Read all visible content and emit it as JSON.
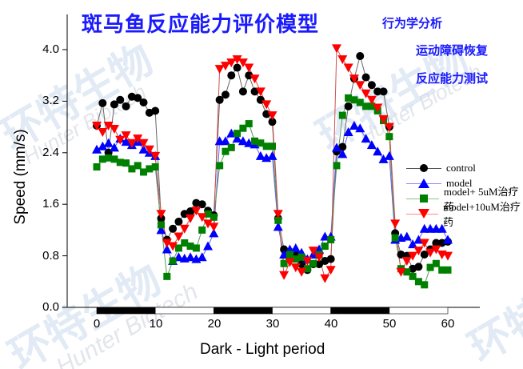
{
  "header": {
    "title": "斑马鱼反应能力评价模型",
    "tags": [
      "行为学分析",
      "运动障碍恢复",
      "反应能力测试"
    ]
  },
  "watermark": {
    "cn": "环特生物",
    "en": "Hunter Biotech"
  },
  "axes": {
    "ylabel": "Speed (mm/s)",
    "xlabel": "Dark - Light period",
    "yticks": [
      "0.0",
      "0.8",
      "1.6",
      "2.4",
      "3.2",
      "4.0"
    ],
    "xticks": [
      "0",
      "10",
      "20",
      "30",
      "40",
      "50",
      "60"
    ]
  },
  "legend": {
    "items": [
      {
        "label": "control",
        "color": "#000000",
        "marker": "circle"
      },
      {
        "label": "model",
        "color": "#0000ff",
        "marker": "triangle-up"
      },
      {
        "label": "model+ 5uM治疗药",
        "color": "#008000",
        "marker": "square"
      },
      {
        "label": "model+10uM治疗药",
        "color": "#ff0000",
        "marker": "triangle-down"
      }
    ]
  },
  "chart_data": {
    "type": "line",
    "title": "斑马鱼反应能力评价模型",
    "xlabel": "Dark - Light period",
    "ylabel": "Speed (mm/s)",
    "xlim": [
      0,
      60
    ],
    "ylim": [
      0,
      4.0
    ],
    "yticks": [
      0.0,
      0.8,
      1.6,
      2.4,
      3.2,
      4.0
    ],
    "xticks": [
      0,
      10,
      20,
      30,
      40,
      50,
      60
    ],
    "grid": false,
    "legend_position": "right",
    "period_bar": [
      {
        "from": 0,
        "to": 10,
        "phase": "dark"
      },
      {
        "from": 10,
        "to": 20,
        "phase": "light"
      },
      {
        "from": 20,
        "to": 30,
        "phase": "dark"
      },
      {
        "from": 30,
        "to": 40,
        "phase": "light"
      },
      {
        "from": 40,
        "to": 50,
        "phase": "dark"
      },
      {
        "from": 50,
        "to": 60,
        "phase": "light"
      }
    ],
    "x": [
      0,
      1,
      2,
      3,
      4,
      5,
      6,
      7,
      8,
      9,
      10,
      11,
      12,
      13,
      14,
      15,
      16,
      17,
      18,
      19,
      20,
      21,
      22,
      23,
      24,
      25,
      26,
      27,
      28,
      29,
      30,
      31,
      32,
      33,
      34,
      35,
      36,
      37,
      38,
      39,
      40,
      41,
      42,
      43,
      44,
      45,
      46,
      47,
      48,
      49,
      50,
      51,
      52,
      53,
      54,
      55,
      56,
      57,
      58,
      59,
      60
    ],
    "series": [
      {
        "name": "control",
        "color": "#000000",
        "marker": "circle",
        "values": [
          2.82,
          3.17,
          2.4,
          3.15,
          3.22,
          3.12,
          3.27,
          3.25,
          3.18,
          3.02,
          3.05,
          1.38,
          1.05,
          1.22,
          1.33,
          1.45,
          1.49,
          1.62,
          1.6,
          1.5,
          1.43,
          3.22,
          3.3,
          3.6,
          3.72,
          3.35,
          3.6,
          3.35,
          3.22,
          3.0,
          2.88,
          1.38,
          0.9,
          0.8,
          0.82,
          0.67,
          0.58,
          0.67,
          0.67,
          0.72,
          0.75,
          2.42,
          2.49,
          3.12,
          3.55,
          3.9,
          3.57,
          3.45,
          3.35,
          3.35,
          2.8,
          1.15,
          0.82,
          0.8,
          0.6,
          0.63,
          0.82,
          0.9,
          1.0,
          1.0,
          1.02
        ]
      },
      {
        "name": "model",
        "color": "#0000ff",
        "marker": "triangle-up",
        "values": [
          2.45,
          2.5,
          2.55,
          2.48,
          2.62,
          2.57,
          2.52,
          2.57,
          2.45,
          2.4,
          2.35,
          1.2,
          0.9,
          0.72,
          0.78,
          0.76,
          0.78,
          0.75,
          0.78,
          0.95,
          1.15,
          2.58,
          2.58,
          2.7,
          2.62,
          2.58,
          2.55,
          2.53,
          2.35,
          2.32,
          2.35,
          1.25,
          0.82,
          0.9,
          0.92,
          0.85,
          0.75,
          0.82,
          0.9,
          1.1,
          1.1,
          2.48,
          2.38,
          2.72,
          2.82,
          2.78,
          2.62,
          2.52,
          2.42,
          2.3,
          2.35,
          1.05,
          1.08,
          1.1,
          0.98,
          1.05,
          1.22,
          1.22,
          1.22,
          1.22,
          1.05
        ]
      },
      {
        "name": "model+ 5uM治疗药",
        "color": "#008000",
        "marker": "square",
        "values": [
          2.18,
          2.3,
          2.32,
          2.3,
          2.25,
          2.24,
          2.15,
          2.2,
          2.1,
          2.15,
          2.18,
          1.28,
          0.48,
          0.72,
          0.92,
          1.0,
          0.95,
          0.92,
          1.2,
          1.45,
          1.4,
          2.2,
          2.42,
          2.48,
          2.7,
          2.78,
          2.85,
          2.58,
          2.55,
          2.5,
          2.5,
          1.35,
          0.68,
          0.82,
          0.75,
          0.78,
          0.6,
          0.68,
          0.82,
          0.95,
          1.05,
          2.2,
          2.98,
          3.25,
          3.22,
          3.18,
          3.12,
          3.12,
          3.05,
          2.9,
          2.65,
          1.08,
          0.6,
          0.55,
          0.48,
          0.4,
          0.35,
          0.62,
          0.68,
          0.58,
          0.58
        ]
      },
      {
        "name": "model+10uM治疗药",
        "color": "#ff0000",
        "marker": "triangle-down",
        "values": [
          2.82,
          2.72,
          2.82,
          2.77,
          2.6,
          2.67,
          2.55,
          2.62,
          2.55,
          2.45,
          2.35,
          1.45,
          1.0,
          0.95,
          1.1,
          1.22,
          1.38,
          1.5,
          1.4,
          1.3,
          1.25,
          3.7,
          3.75,
          3.8,
          3.85,
          3.8,
          3.72,
          3.55,
          3.35,
          3.15,
          2.98,
          1.45,
          0.5,
          0.7,
          0.62,
          0.55,
          0.72,
          0.88,
          0.78,
          0.45,
          0.58,
          4.02,
          3.85,
          3.72,
          3.55,
          3.45,
          3.32,
          3.22,
          3.1,
          2.92,
          2.8,
          1.3,
          0.55,
          0.72,
          0.8,
          0.88,
          1.0,
          0.85,
          0.9,
          0.82,
          0.8
        ]
      }
    ]
  }
}
